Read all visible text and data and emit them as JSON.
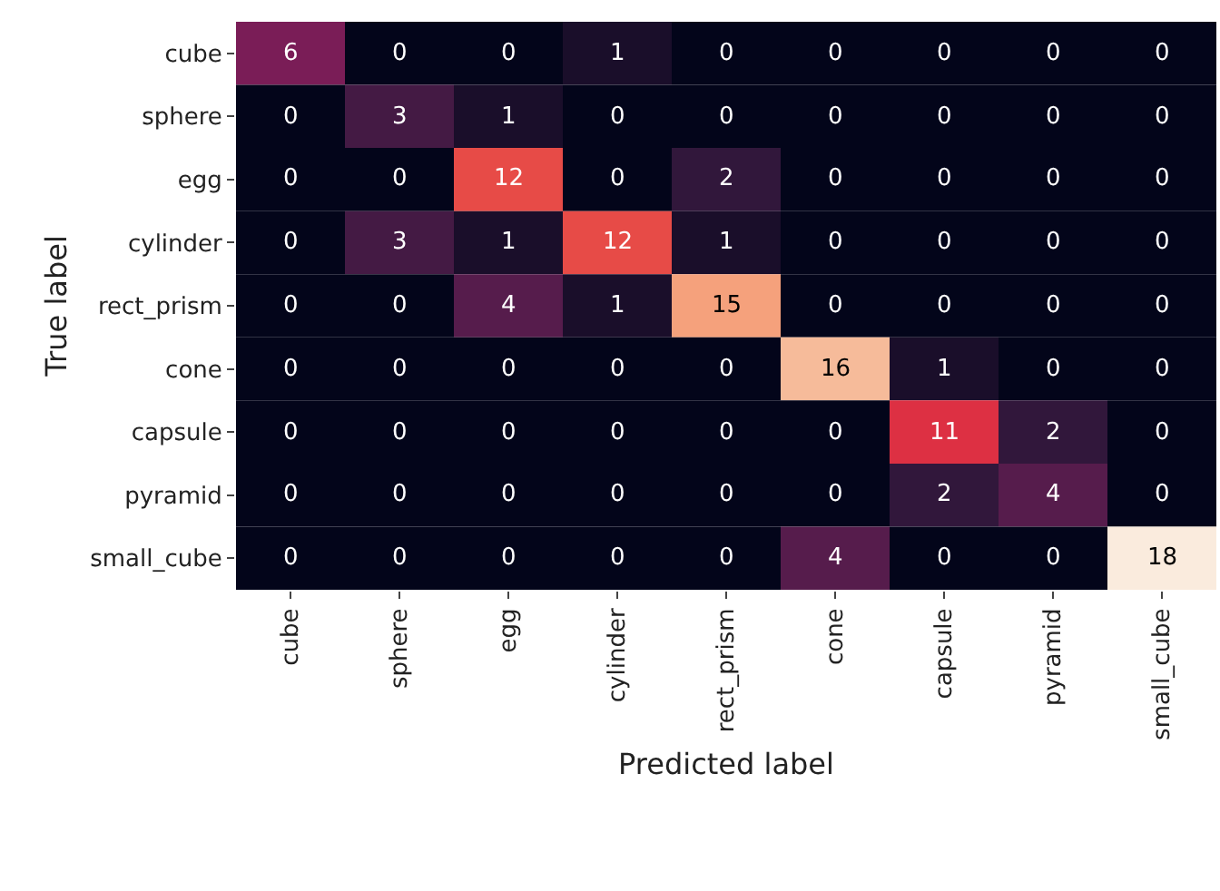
{
  "chart_data": {
    "type": "heatmap",
    "xlabel": "Predicted label",
    "ylabel": "True label",
    "categories": [
      "cube",
      "sphere",
      "egg",
      "cylinder",
      "rect_prism",
      "cone",
      "capsule",
      "pyramid",
      "small_cube"
    ],
    "y_categories": [
      "cube",
      "sphere",
      "egg",
      "cylinder",
      "rect_prism",
      "cone",
      "capsule",
      "pyramid",
      "small_cube"
    ],
    "cells": [
      [
        6,
        0,
        0,
        1,
        0,
        0,
        0,
        0,
        0
      ],
      [
        0,
        3,
        1,
        0,
        0,
        0,
        0,
        0,
        0
      ],
      [
        0,
        0,
        12,
        0,
        2,
        0,
        0,
        0,
        0
      ],
      [
        0,
        3,
        1,
        12,
        1,
        0,
        0,
        0,
        0
      ],
      [
        0,
        0,
        4,
        1,
        15,
        0,
        0,
        0,
        0
      ],
      [
        0,
        0,
        0,
        0,
        0,
        16,
        1,
        0,
        0
      ],
      [
        0,
        0,
        0,
        0,
        0,
        0,
        11,
        2,
        0
      ],
      [
        0,
        0,
        0,
        0,
        0,
        0,
        2,
        4,
        0
      ],
      [
        0,
        0,
        0,
        0,
        0,
        4,
        0,
        0,
        18
      ]
    ],
    "data_labels": true
  }
}
